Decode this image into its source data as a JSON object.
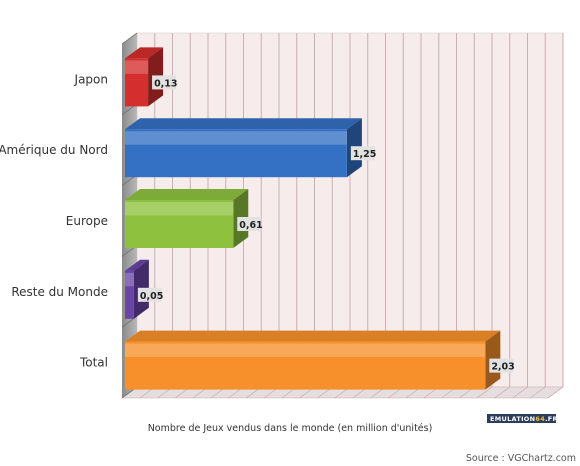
{
  "chart_data": {
    "type": "bar",
    "orientation": "horizontal",
    "categories": [
      "Japon",
      "Amérique du Nord",
      "Europe",
      "Reste du Monde",
      "Total"
    ],
    "values": [
      0.13,
      1.25,
      0.61,
      0.05,
      2.03
    ],
    "value_labels": [
      "0,13",
      "1,25",
      "0,61",
      "0,05",
      "2,03"
    ],
    "colors": [
      "#d42e2e",
      "#3470c4",
      "#8ec23e",
      "#6a45a8",
      "#f7902a"
    ],
    "xlim": [
      0,
      2.4
    ],
    "xlabel": "Nombre de Jeux vendus dans le monde (en million d'unités)",
    "grid": true,
    "style": "3d"
  },
  "source": "Source : VGChartz.com",
  "logo": {
    "part1": "EMULATION",
    "part2": "64",
    "part3": ".FR"
  }
}
